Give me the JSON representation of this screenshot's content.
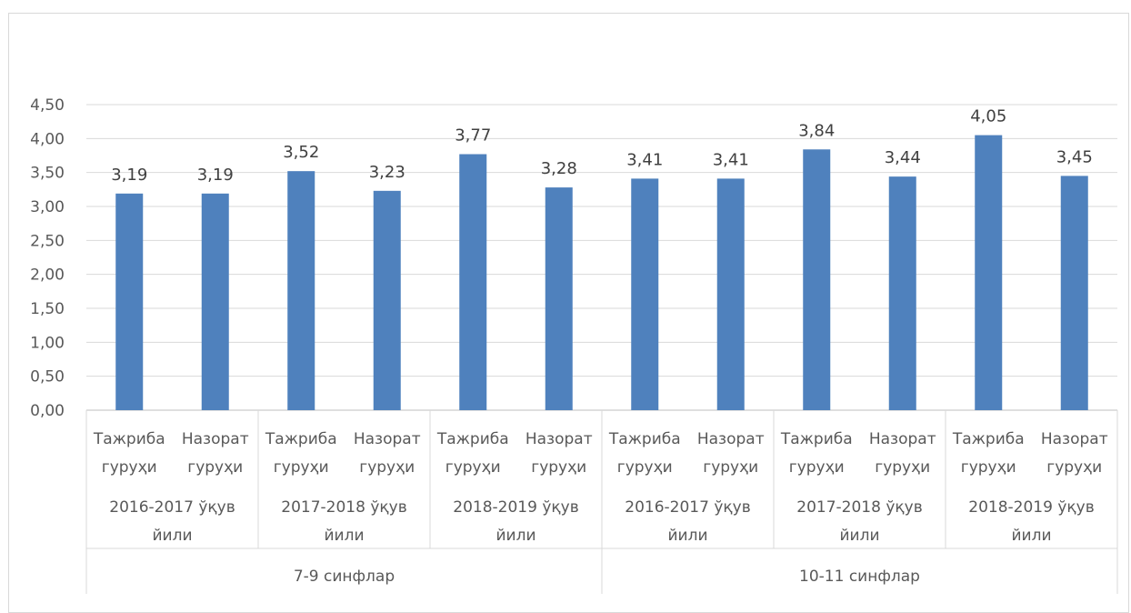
{
  "chart_data": {
    "type": "bar",
    "color": "#4f81bd",
    "ylim": [
      0,
      4.5
    ],
    "yticks": [
      "0,00",
      "0,50",
      "1,00",
      "1,50",
      "2,00",
      "2,50",
      "3,00",
      "3,50",
      "4,00",
      "4,50"
    ],
    "values": [
      3.19,
      3.19,
      3.52,
      3.23,
      3.77,
      3.28,
      3.41,
      3.41,
      3.84,
      3.44,
      4.05,
      3.45
    ],
    "data_labels": [
      "3,19",
      "3,19",
      "3,52",
      "3,23",
      "3,77",
      "3,28",
      "3,41",
      "3,41",
      "3,84",
      "3,44",
      "4,05",
      "3,45"
    ],
    "categories": [
      [
        "Тажриба",
        "гуруҳи"
      ],
      [
        "Назорат",
        "гуруҳи"
      ],
      [
        "Тажриба",
        "гуруҳи"
      ],
      [
        "Назорат",
        "гуруҳи"
      ],
      [
        "Тажриба",
        "гуруҳи"
      ],
      [
        "Назорат",
        "гуруҳи"
      ],
      [
        "Тажриба",
        "гуруҳи"
      ],
      [
        "Назорат",
        "гуруҳи"
      ],
      [
        "Тажриба",
        "гуруҳи"
      ],
      [
        "Назорат",
        "гуруҳи"
      ],
      [
        "Тажриба",
        "гуруҳи"
      ],
      [
        "Назорат",
        "гуруҳи"
      ]
    ],
    "year_groups": [
      [
        "2016-2017 ўқув",
        "йили"
      ],
      [
        "2017-2018 ўқув",
        "йили"
      ],
      [
        "2018-2019 ўқув",
        "йили"
      ],
      [
        "2016-2017 ўқув",
        "йили"
      ],
      [
        "2017-2018 ўқув",
        "йили"
      ],
      [
        "2018-2019 ўқув",
        "йили"
      ]
    ],
    "class_groups": [
      "7-9 синфлар",
      "10-11 синфлар"
    ],
    "grid": true
  }
}
